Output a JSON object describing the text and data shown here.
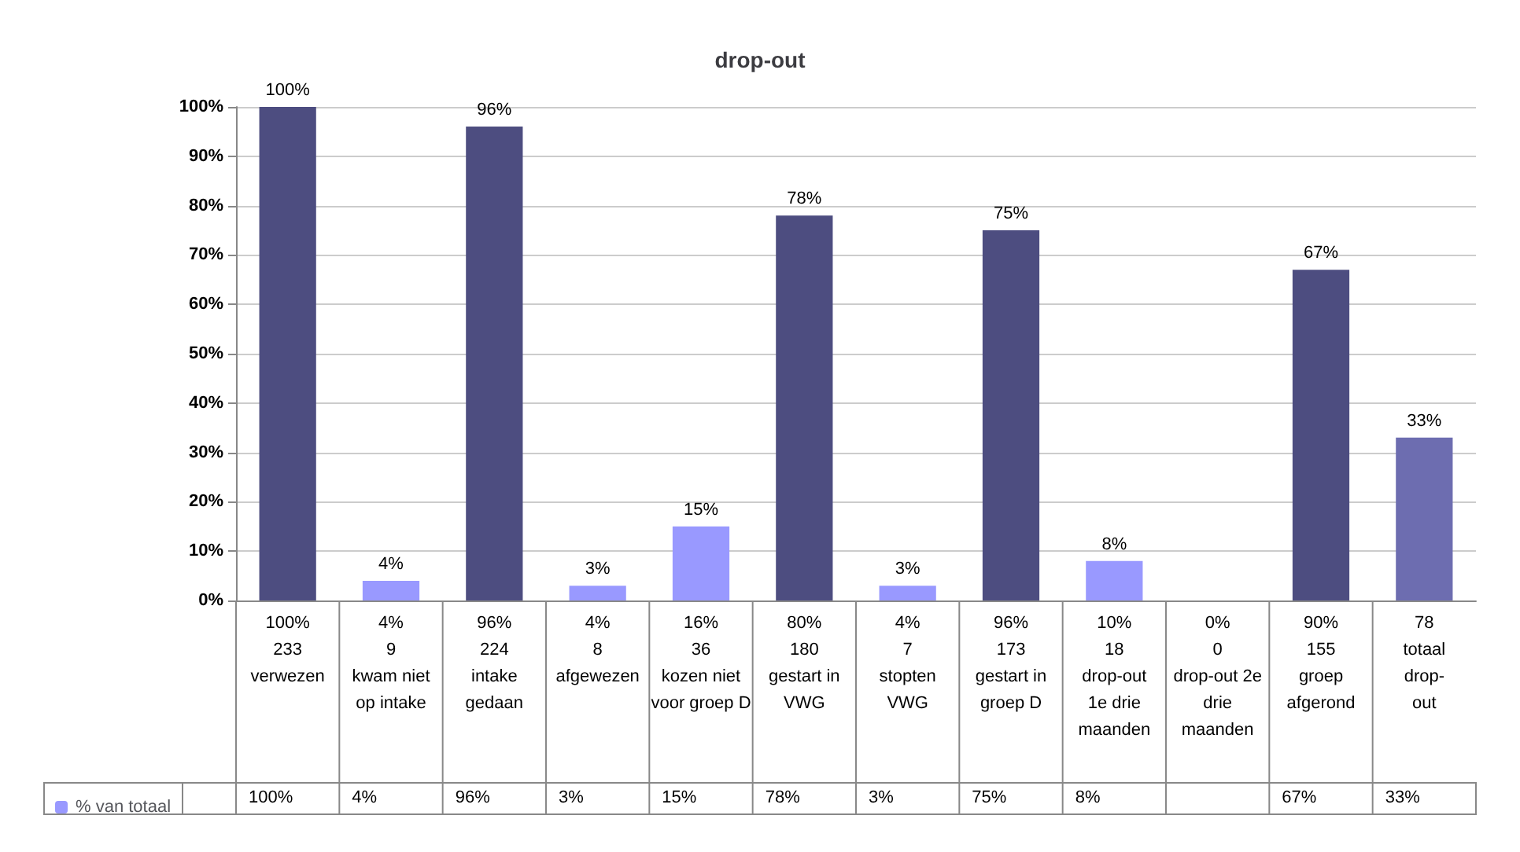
{
  "chart_data": {
    "type": "bar",
    "title": "drop-out",
    "categories": [
      "100%\n233\nverwezen",
      "4%\n9\nkwam niet\nop intake",
      "96%\n224\nintake\ngedaan",
      "4%\n8\nafgewezen",
      "16%\n36\nkozen niet\nvoor groep D",
      "80%\n180\ngestart in\nVWG",
      "4%\n7\nstopten\nVWG",
      "96%\n173\ngestart in\ngroep D",
      "10%\n18\ndrop-out\n1e drie\nmaanden",
      "0%\n0\ndrop-out 2e\ndrie\nmaanden",
      "90%\n155\ngroep\nafgerond",
      "78\ntotaal\ndrop-\nout"
    ],
    "series": [
      {
        "name": "% van totaal",
        "color": "#9999ff",
        "values": [
          100,
          4,
          96,
          3,
          15,
          78,
          3,
          75,
          8,
          0,
          67,
          33
        ],
        "colors": [
          "#4d4d80",
          "#9999ff",
          "#4d4d80",
          "#9999ff",
          "#9999ff",
          "#4d4d80",
          "#9999ff",
          "#4d4d80",
          "#9999ff",
          "#9999ff",
          "#4d4d80",
          "#6d6db0"
        ],
        "value_labels": [
          "100%",
          "4%",
          "96%",
          "3%",
          "15%",
          "78%",
          "3%",
          "75%",
          "8%",
          null,
          "67%",
          "33%"
        ]
      }
    ],
    "ylim": [
      0,
      100
    ],
    "yticks": [
      {
        "value": 0,
        "label": "0%"
      },
      {
        "value": 10,
        "label": "10%"
      },
      {
        "value": 20,
        "label": "20%"
      },
      {
        "value": 30,
        "label": "30%"
      },
      {
        "value": 40,
        "label": "40%"
      },
      {
        "value": 50,
        "label": "50%"
      },
      {
        "value": 60,
        "label": "60%"
      },
      {
        "value": 70,
        "label": "70%"
      },
      {
        "value": 80,
        "label": "80%"
      },
      {
        "value": 90,
        "label": "90%"
      },
      {
        "value": 100,
        "label": "100%"
      }
    ],
    "grid": "y",
    "legend": "bottom left"
  }
}
